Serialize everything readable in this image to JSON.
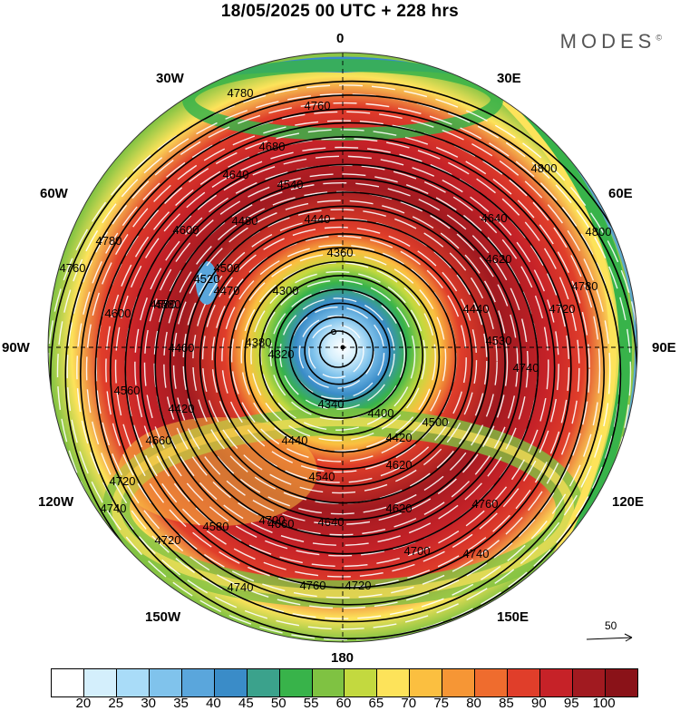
{
  "header": {
    "title": "18/05/2025  00 UTC  + 228 hrs",
    "brand": "MODES"
  },
  "longitude_labels": [
    {
      "id": "0",
      "text": "0"
    },
    {
      "id": "30e",
      "text": "30E"
    },
    {
      "id": "60e",
      "text": "60E"
    },
    {
      "id": "90e",
      "text": "90E"
    },
    {
      "id": "120e",
      "text": "120E"
    },
    {
      "id": "150e",
      "text": "150E"
    },
    {
      "id": "180",
      "text": "180"
    },
    {
      "id": "150w",
      "text": "150W"
    },
    {
      "id": "120w",
      "text": "120W"
    },
    {
      "id": "90w",
      "text": "90W"
    },
    {
      "id": "60w",
      "text": "60W"
    },
    {
      "id": "30w",
      "text": "30W"
    }
  ],
  "contour_labels": [
    "4780",
    "4760",
    "4680",
    "4640",
    "4540",
    "4480",
    "4440",
    "4600",
    "4640",
    "4620",
    "4580",
    "4500",
    "4520",
    "4470",
    "4360",
    "4300",
    "4380",
    "4320",
    "4440",
    "4530",
    "4500",
    "4560",
    "4600",
    "4580",
    "4460",
    "4420",
    "4340",
    "4400",
    "4420",
    "4440",
    "4540",
    "4620",
    "4660",
    "4720",
    "4700",
    "4660",
    "4640",
    "4620",
    "4580",
    "4700",
    "4720",
    "4740",
    "4720",
    "4760",
    "4740",
    "4760",
    "4780",
    "4800",
    "4800",
    "4780",
    "4720",
    "4740",
    "4760",
    "4740"
  ],
  "reference_vector": {
    "value": "50"
  },
  "colorbar": {
    "ticks": [
      "20",
      "25",
      "30",
      "35",
      "40",
      "45",
      "50",
      "55",
      "60",
      "65",
      "70",
      "75",
      "80",
      "85",
      "90",
      "95",
      "100"
    ],
    "colors": [
      "#ffffff",
      "#d4effc",
      "#a9dcf8",
      "#80c3ec",
      "#5aa6dc",
      "#3a8cc8",
      "#3ba28c",
      "#38b34a",
      "#7fc242",
      "#c3d93f",
      "#fde35a",
      "#fbbf40",
      "#f69635",
      "#ef6c2e",
      "#e03e2a",
      "#c62228",
      "#a11a20",
      "#8a1218"
    ]
  }
}
